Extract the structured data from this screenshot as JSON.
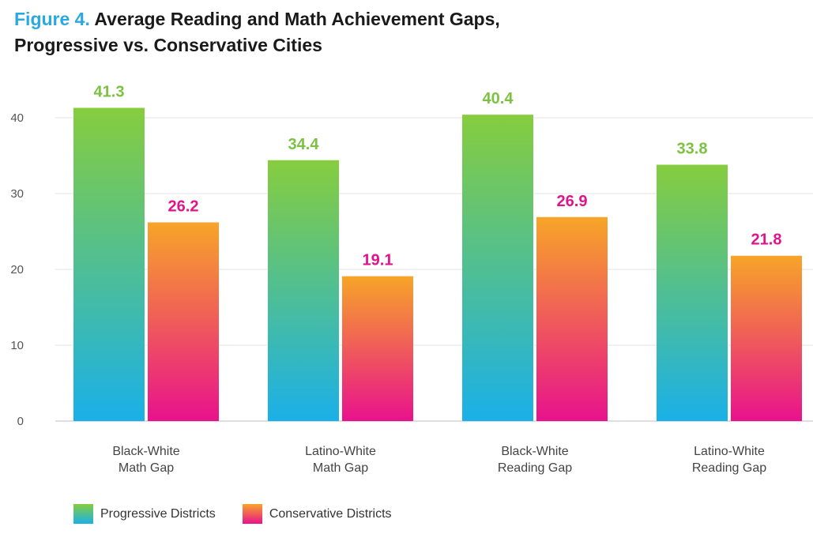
{
  "title": {
    "prefix": "Figure 4.",
    "line1": "Average Reading and Math Achievement Gaps,",
    "line2": "Progressive vs. Conservative Cities"
  },
  "colors": {
    "figure_label": "#2aa8e0",
    "progressive_top": "#86cd3e",
    "progressive_bottom": "#1ab0e8",
    "conservative_top": "#f7a528",
    "conservative_bottom": "#e8128c",
    "progressive_label": "#7cc242",
    "conservative_label": "#e0148c"
  },
  "chart_data": {
    "type": "bar",
    "categories": [
      [
        "Black-White",
        "Math Gap"
      ],
      [
        "Latino-White",
        "Math Gap"
      ],
      [
        "Black-White",
        "Reading Gap"
      ],
      [
        "Latino-White",
        "Reading Gap"
      ]
    ],
    "series": [
      {
        "name": "Progressive Districts",
        "values": [
          41.3,
          34.4,
          40.4,
          33.8
        ]
      },
      {
        "name": "Conservative Districts",
        "values": [
          26.2,
          19.1,
          26.9,
          21.8
        ]
      }
    ],
    "yticks": [
      0,
      10,
      20,
      30,
      40
    ],
    "ylim": [
      0,
      44
    ],
    "grid": true,
    "legend_position": "bottom-left",
    "data_labels": true
  }
}
